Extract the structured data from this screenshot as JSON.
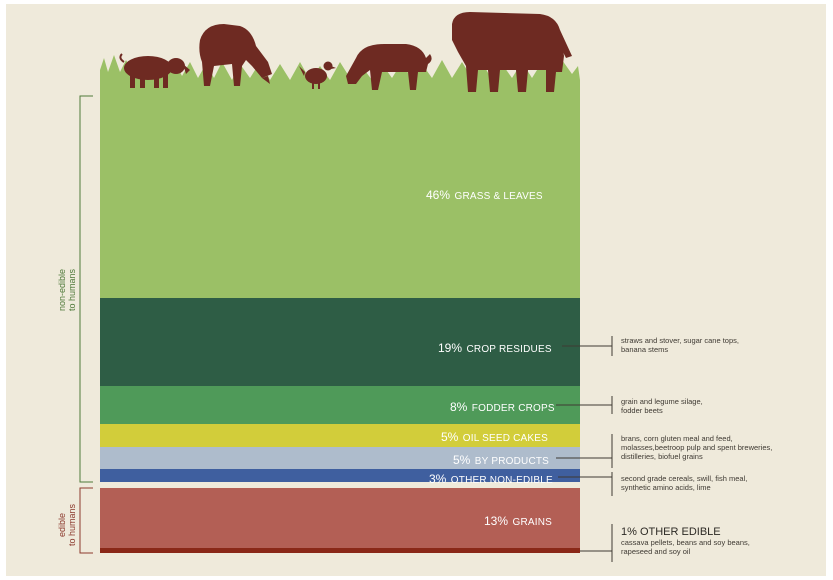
{
  "colors": {
    "grass": "#9bc066",
    "crop_residues": "#2e5d45",
    "fodder_crops": "#4f9a59",
    "oil_seed_cakes": "#d2cd3a",
    "by_products": "#aebccc",
    "other_non_edible": "#3f5f9f",
    "grains": "#b35f55",
    "other_edible": "#8a2818",
    "animals": "#6e2a22",
    "non_edible_bracket": "#4f7a3a",
    "edible_bracket": "#8c3a2e"
  },
  "chart_data": {
    "type": "stacked-bar",
    "unit": "%",
    "segments": [
      {
        "key": "grass",
        "value": 46,
        "percent_label": "46%",
        "name": "GRASS & LEAVES"
      },
      {
        "key": "crop_residues",
        "value": 19,
        "percent_label": "19%",
        "name": "CROP RESIDUES"
      },
      {
        "key": "fodder_crops",
        "value": 8,
        "percent_label": "8%",
        "name": "FODDER CROPS"
      },
      {
        "key": "oil_seed_cakes",
        "value": 5,
        "percent_label": "5%",
        "name": "OIL SEED CAKES"
      },
      {
        "key": "by_products",
        "value": 5,
        "percent_label": "5%",
        "name": "BY PRODUCTS"
      },
      {
        "key": "other_non_edible",
        "value": 3,
        "percent_label": "3%",
        "name": "OTHER NON-EDIBLE"
      },
      {
        "key": "grains",
        "value": 13,
        "percent_label": "13%",
        "name": "GRAINS"
      },
      {
        "key": "other_edible",
        "value": 1,
        "percent_label": "1%",
        "name": "OTHER EDIBLE"
      }
    ]
  },
  "side_labels": {
    "non_edible": [
      "non-edible",
      "to humans"
    ],
    "edible": [
      "edible",
      "to humans"
    ]
  },
  "annotations": {
    "crop_residues": [
      "straws and stover, sugar cane tops,",
      "banana stems"
    ],
    "fodder_crops": [
      "grain and legume silage,",
      "fodder beets"
    ],
    "by_products": [
      "brans, corn gluten meal and feed,",
      "molasses,beetroop pulp and spent breweries,",
      "distilleries, biofuel grains"
    ],
    "other_non_edible": [
      "second grade cereals, swill, fish meal,",
      "synthetic amino acids, lime"
    ],
    "other_edible_title": "1% OTHER EDIBLE",
    "other_edible": [
      "cassava pellets, beans and soy beans,",
      "rapeseed and soy oil"
    ]
  },
  "animals": [
    "pig-icon",
    "goat-icon",
    "chicken-icon",
    "sheep-icon",
    "cow-icon"
  ]
}
